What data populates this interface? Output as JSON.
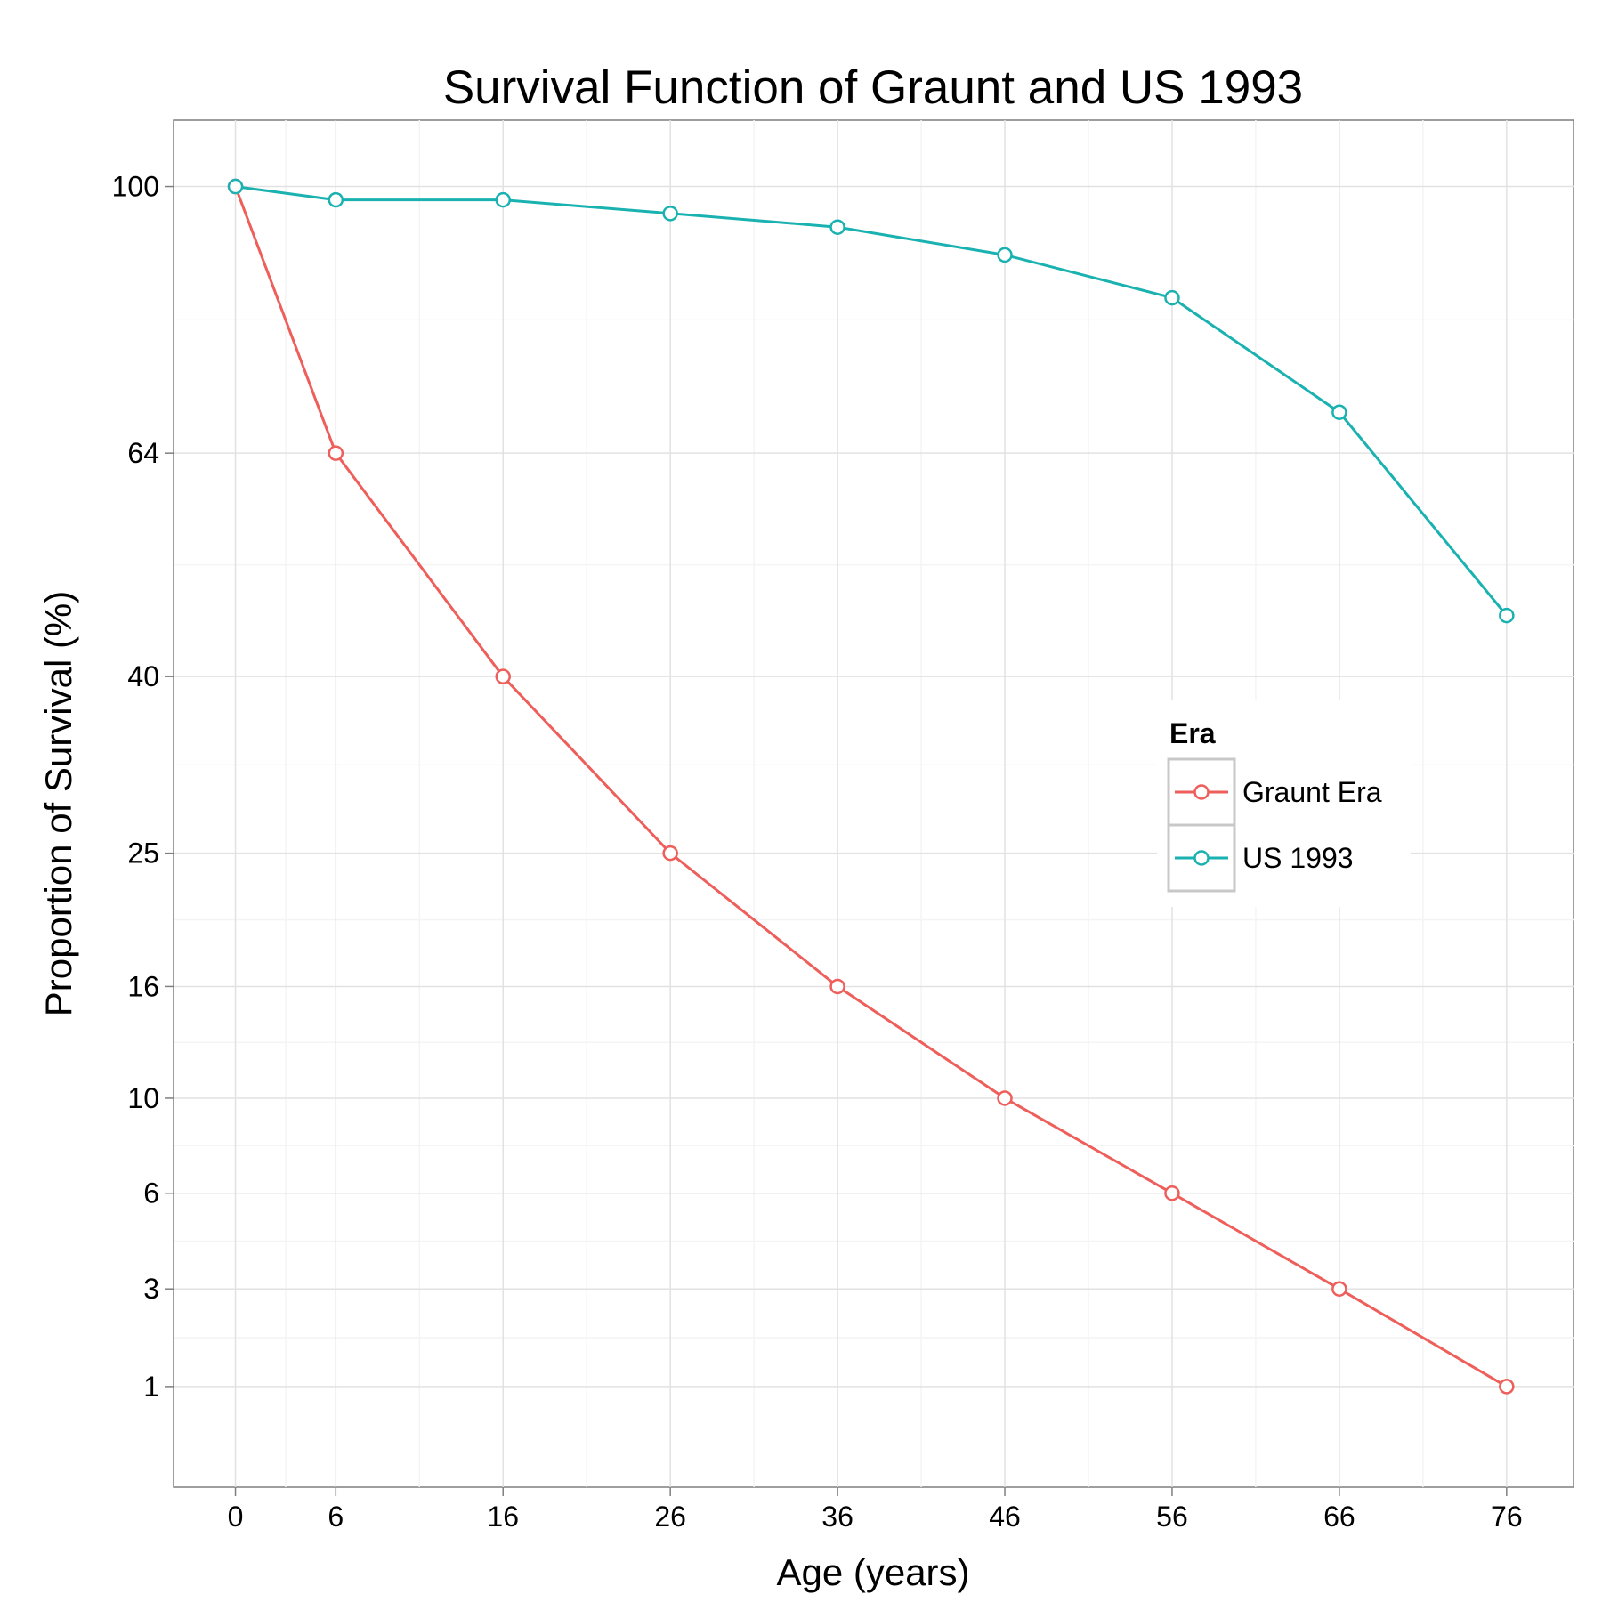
{
  "chart_data": {
    "type": "line",
    "title": "Survival Function of Graunt and US 1993",
    "xlabel": "Age (years)",
    "ylabel": "Proportion of Survival (%)",
    "x": [
      0,
      6,
      16,
      26,
      36,
      46,
      56,
      66,
      76
    ],
    "x_ticks": [
      "0",
      "6",
      "16",
      "26",
      "36",
      "46",
      "56",
      "66",
      "76"
    ],
    "y_ticks": [
      "1",
      "3",
      "6",
      "10",
      "16",
      "25",
      "40",
      "64",
      "100"
    ],
    "y_scale": "sqrt",
    "xlim": [
      -3.7,
      80
    ],
    "ylim": [
      0.06,
      110.2
    ],
    "grid": true,
    "legend": {
      "title": "Era",
      "position": "right"
    },
    "series": [
      {
        "name": "Graunt Era",
        "color": "#EE5E5A",
        "values": [
          100,
          64,
          40,
          25,
          16,
          10,
          6,
          3,
          1
        ]
      },
      {
        "name": "US 1993",
        "color": "#1AB2B0",
        "values": [
          100,
          98,
          98,
          96,
          94,
          90,
          84,
          69,
          46
        ]
      }
    ]
  }
}
